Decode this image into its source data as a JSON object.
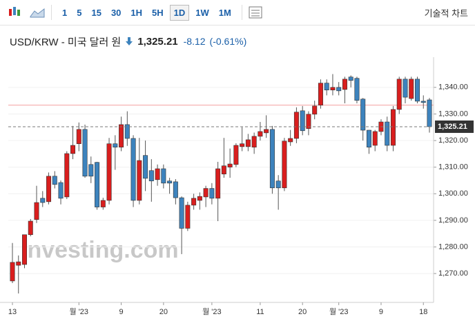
{
  "toolbar": {
    "intervals": [
      "1",
      "5",
      "15",
      "30",
      "1H",
      "5H",
      "1D",
      "1W",
      "1M"
    ],
    "selected": "1D",
    "technical": "기술적 차트"
  },
  "header": {
    "symbol": "USD/KRW - 미국 달러 원",
    "price": "1,325.21",
    "change": "-8.12",
    "change_pct": "(-0.61%)"
  },
  "chart_data": {
    "type": "candlestick",
    "watermark": "Investing.com",
    "categories": [
      "13",
      null,
      null,
      null,
      null,
      null,
      null,
      null,
      null,
      null,
      null,
      "월 '23",
      null,
      null,
      null,
      null,
      null,
      null,
      "9",
      null,
      null,
      null,
      null,
      null,
      null,
      "20",
      null,
      null,
      null,
      null,
      null,
      null,
      null,
      "월 '23",
      null,
      null,
      null,
      null,
      null,
      null,
      null,
      "11",
      null,
      null,
      null,
      null,
      null,
      null,
      "20",
      null,
      null,
      null,
      null,
      null,
      "월 '23",
      null,
      null,
      null,
      null,
      null,
      null,
      "9",
      null,
      null,
      null,
      null,
      null,
      null,
      "18",
      null
    ],
    "open": [
      1267.2,
      1273.1,
      1273.4,
      1284.6,
      1290.3,
      1298.3,
      1297,
      1306.6,
      1304.2,
      1298.8,
      1315.1,
      1318.8,
      1324.2,
      1311,
      1311.8,
      1295,
      1297.5,
      1318.8,
      1317.5,
      1326,
      1320.8,
      1297.5,
      1314.4,
      1308.7,
      1305.3,
      1309.4,
      1304.8,
      1304.5,
      1298.5,
      1287,
      1295.7,
      1297.5,
      1298.8,
      1302,
      1298.3,
      1307.4,
      1310,
      1311,
      1317.7,
      1317.7,
      1317.5,
      1321.6,
      1322.9,
      1324.2,
      1304.8,
      1302.2,
      1319.5,
      1320.8,
      1331.2,
      1324.5,
      1329.9,
      1333.3,
      1341.6,
      1339,
      1340,
      1339.2,
      1343.9,
      1343.4,
      1335.6,
      1323.9,
      1318.2,
      1323.4,
      1327,
      1318.2,
      1331.7,
      1343.1,
      1335.8,
      1343.1,
      1334.8,
      1335.3
    ],
    "high": [
      1281.5,
      1276.8,
      1284.6,
      1290.5,
      1303,
      1301,
      1308,
      1308.5,
      1305,
      1316,
      1325.5,
      1326.8,
      1326,
      1314,
      1312,
      1298.5,
      1321,
      1322,
      1329,
      1331,
      1322,
      1321,
      1320,
      1313,
      1311,
      1311,
      1306,
      1305.5,
      1299,
      1297,
      1300,
      1300.5,
      1303,
      1304,
      1312,
      1321,
      1317,
      1319,
      1325,
      1322.5,
      1323,
      1327,
      1329.5,
      1325.5,
      1307,
      1321,
      1324,
      1332.5,
      1333,
      1331,
      1335,
      1343,
      1343,
      1345,
      1342,
      1344,
      1344.5,
      1344,
      1336,
      1324,
      1324,
      1328,
      1329,
      1333,
      1344,
      1344,
      1344,
      1344,
      1337,
      1336
    ],
    "low": [
      1266.4,
      1262.5,
      1272,
      1284,
      1289,
      1295,
      1296,
      1302,
      1296,
      1298,
      1313,
      1316,
      1306,
      1304,
      1294,
      1294,
      1296,
      1309,
      1316,
      1318,
      1295,
      1296,
      1301,
      1297,
      1303,
      1302,
      1300,
      1296,
      1277.3,
      1286,
      1294,
      1294,
      1295,
      1296,
      1289.7,
      1306,
      1306,
      1310,
      1316,
      1316,
      1315,
      1320,
      1321,
      1300,
      1294,
      1301,
      1318,
      1319,
      1322,
      1322,
      1328,
      1332,
      1337,
      1337,
      1337,
      1334,
      1340,
      1334,
      1320,
      1315,
      1316,
      1322,
      1316,
      1316,
      1330,
      1334,
      1335,
      1334,
      1332,
      1323
    ],
    "close": [
      1274.2,
      1274.4,
      1284.6,
      1289.7,
      1296.7,
      1296.7,
      1306.6,
      1303.5,
      1298.3,
      1315.1,
      1318.2,
      1324.2,
      1306.6,
      1306.6,
      1295,
      1297.5,
      1318.8,
      1317.5,
      1326,
      1320.8,
      1297.5,
      1312.5,
      1305.8,
      1304.8,
      1309.4,
      1304,
      1304,
      1298.5,
      1287,
      1295.7,
      1298.3,
      1299,
      1302,
      1298.3,
      1309.4,
      1310.5,
      1311.2,
      1318.2,
      1318.8,
      1320.3,
      1321.6,
      1323.4,
      1324.2,
      1302.2,
      1302.2,
      1319.8,
      1320.8,
      1330.7,
      1323.7,
      1329.9,
      1333,
      1341.6,
      1339,
      1340,
      1338.7,
      1343.1,
      1342.6,
      1335.1,
      1323.9,
      1317.5,
      1323.4,
      1327,
      1318.2,
      1331.7,
      1343.1,
      1336.3,
      1343.1,
      1334.8,
      1334.3,
      1325.21
    ],
    "up_color": "#d91e1e",
    "down_color": "#3d83bd",
    "prev_close": 1333.33,
    "prev_close_color": "#f4a0a0",
    "ylim": [
      1260.7,
      1349.8
    ],
    "yticks": [
      {
        "value": 1270,
        "label": "1,270.00"
      },
      {
        "value": 1280,
        "label": "1,280.00"
      },
      {
        "value": 1290,
        "label": "1,290.00"
      },
      {
        "value": 1300,
        "label": "1,300.00"
      },
      {
        "value": 1310,
        "label": "1,310.00"
      },
      {
        "value": 1320,
        "label": "1,320.00"
      },
      {
        "value": 1330,
        "label": "1,330.00"
      },
      {
        "value": 1340,
        "label": "1,340.00"
      }
    ],
    "grid": true
  }
}
